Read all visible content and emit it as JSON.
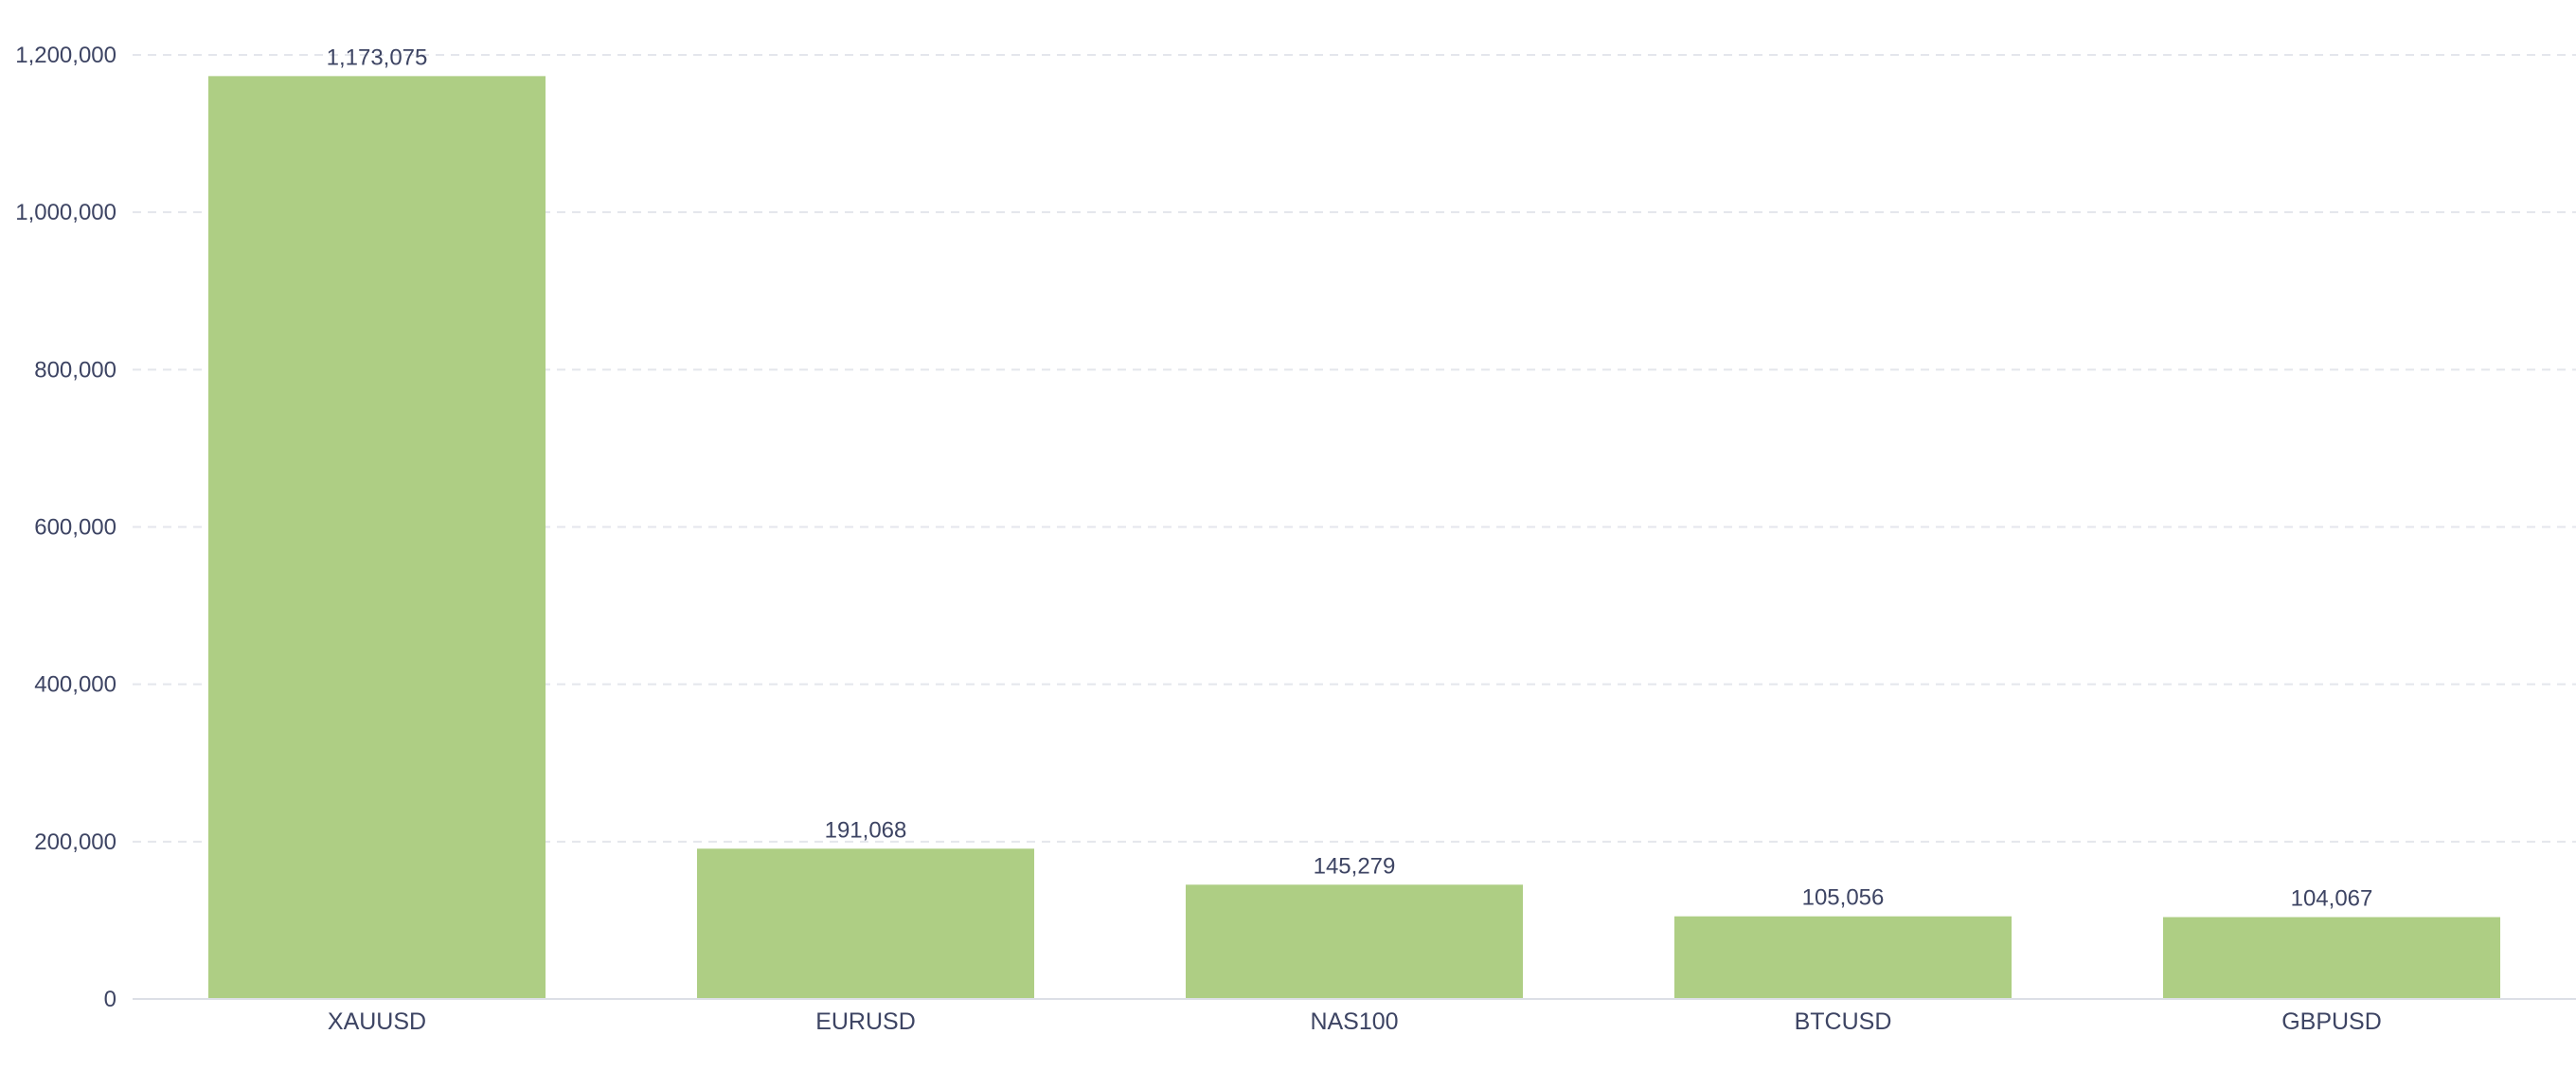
{
  "chart_data": {
    "type": "bar",
    "title": "",
    "xlabel": "",
    "ylabel": "",
    "categories": [
      "XAUUSD",
      "EURUSD",
      "NAS100",
      "BTCUSD",
      "GBPUSD"
    ],
    "values": [
      1173075,
      191068,
      145279,
      105056,
      104067
    ],
    "value_labels": [
      "1,173,075",
      "191,068",
      "145,279",
      "105,056",
      "104,067"
    ],
    "ylim": [
      0,
      1200000
    ],
    "yticks": [
      0,
      200000,
      400000,
      600000,
      800000,
      1000000,
      1200000
    ],
    "ytick_labels": [
      "0",
      "200,000",
      "400,000",
      "600,000",
      "800,000",
      "1,000,000",
      "1,200,000"
    ],
    "grid": true,
    "legend": "none",
    "colors": {
      "bar": "#aece84",
      "gridline": "#e4e6ec",
      "axis": "#dcdfe6",
      "text": "#3d4463"
    }
  }
}
